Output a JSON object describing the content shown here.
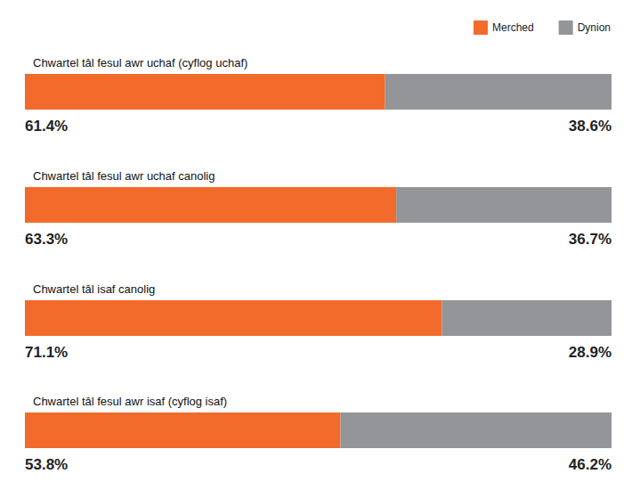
{
  "chart_data": {
    "type": "bar",
    "orientation": "horizontal",
    "stacked": true,
    "categories": [
      "Chwartel tâl fesul awr uchaf (cyflog uchaf)",
      "Chwartel tâl fesul awr uchaf canolig",
      "Chwartel tâl isaf canolig",
      "Chwartel tâl fesul awr isaf (cyflog isaf)"
    ],
    "series": [
      {
        "name": "Merched",
        "color": "#f26b2b",
        "values": [
          61.4,
          63.3,
          71.1,
          53.8
        ],
        "value_labels": [
          "61.4%",
          "63.3%",
          "71.1%",
          "53.8%"
        ]
      },
      {
        "name": "Dynion",
        "color": "#939598",
        "values": [
          38.6,
          36.7,
          28.9,
          46.2
        ],
        "value_labels": [
          "38.6%",
          "36.7%",
          "28.9%",
          "46.2%"
        ]
      }
    ],
    "xlim": [
      0,
      100
    ],
    "data_labels": true,
    "tick_labels": false,
    "legend": "top-right"
  }
}
